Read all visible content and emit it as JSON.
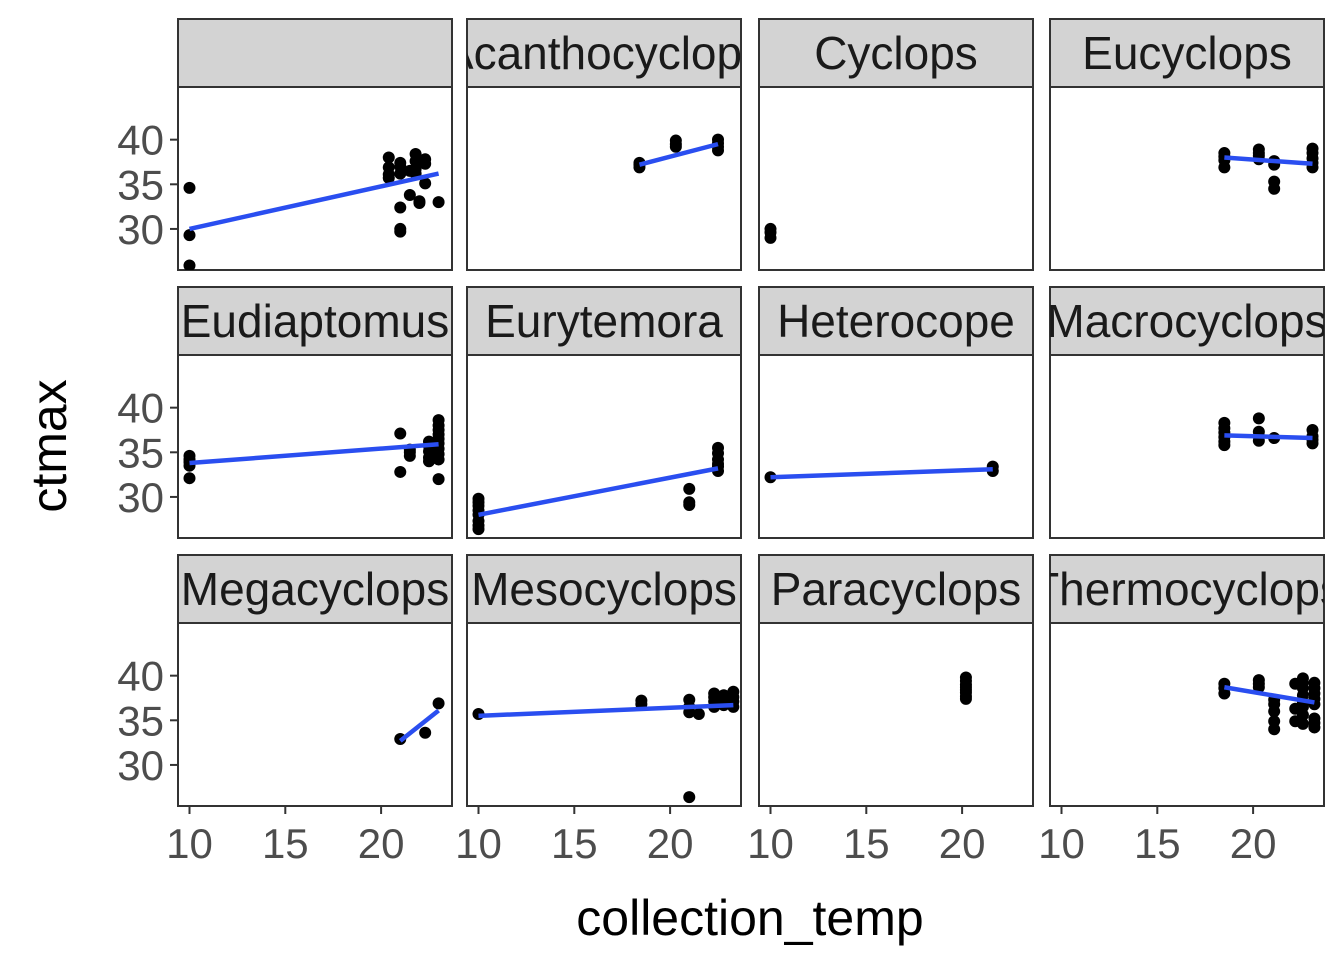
{
  "chart_data": {
    "type": "scatter",
    "layout": "facet grid 3 rows x 4 columns, shared axes",
    "xlabel": "collection_temp",
    "ylabel": "ctmax",
    "x_ticks": [
      10,
      15,
      20
    ],
    "y_ticks": [
      30,
      35,
      40
    ],
    "xlim": [
      9.4,
      23.7
    ],
    "ylim": [
      25.4,
      45.9
    ],
    "trend_line": "linear fit",
    "colors": {
      "point": "#000000",
      "line": "#2a4ef0",
      "strip_fill": "#d3d3d3",
      "panel_border": "#333333"
    },
    "panels": [
      {
        "label": "",
        "points": [
          [
            10,
            34.6
          ],
          [
            10,
            29.3
          ],
          [
            10,
            25.9
          ],
          [
            20.4,
            38.0
          ],
          [
            20.4,
            36.9
          ],
          [
            20.4,
            36.1
          ],
          [
            20.4,
            35.7
          ],
          [
            21,
            37.4
          ],
          [
            21,
            37.0
          ],
          [
            21,
            36.2
          ],
          [
            21,
            32.4
          ],
          [
            21,
            30.0
          ],
          [
            21,
            29.7
          ],
          [
            21.5,
            36.5
          ],
          [
            21.5,
            33.8
          ],
          [
            21.8,
            38.4
          ],
          [
            21.8,
            37.6
          ],
          [
            21.8,
            36.7
          ],
          [
            21.8,
            36.2
          ],
          [
            22,
            33.1
          ],
          [
            22,
            32.9
          ],
          [
            22.3,
            37.8
          ],
          [
            22.3,
            37.3
          ],
          [
            22.3,
            35.1
          ],
          [
            23,
            33.0
          ]
        ],
        "fit": [
          [
            10,
            30.0
          ],
          [
            23,
            36.2
          ]
        ]
      },
      {
        "label": "Acanthocyclops",
        "points": [
          [
            18.4,
            37.4
          ],
          [
            18.4,
            37.2
          ],
          [
            18.4,
            36.9
          ],
          [
            20.3,
            39.9
          ],
          [
            20.3,
            39.5
          ],
          [
            20.3,
            39.2
          ],
          [
            22.5,
            40.0
          ],
          [
            22.5,
            39.6
          ],
          [
            22.5,
            39.2
          ],
          [
            22.5,
            38.8
          ]
        ],
        "fit": [
          [
            18.4,
            37.2
          ],
          [
            22.5,
            39.5
          ]
        ]
      },
      {
        "label": "Cyclops",
        "points": [
          [
            10,
            30.0
          ],
          [
            10,
            29.6
          ],
          [
            10,
            29.0
          ]
        ],
        "fit": []
      },
      {
        "label": "Eucyclops",
        "points": [
          [
            18.5,
            38.5
          ],
          [
            18.5,
            38.1
          ],
          [
            18.5,
            37.7
          ],
          [
            18.5,
            36.9
          ],
          [
            20.3,
            38.9
          ],
          [
            20.3,
            38.5
          ],
          [
            20.3,
            38.2
          ],
          [
            20.3,
            37.8
          ],
          [
            21.1,
            37.6
          ],
          [
            21.1,
            37.2
          ],
          [
            21.1,
            35.3
          ],
          [
            21.1,
            34.5
          ],
          [
            23.1,
            39.0
          ],
          [
            23.1,
            38.5
          ],
          [
            23.1,
            37.9
          ],
          [
            23.1,
            37.4
          ],
          [
            23.1,
            36.9
          ]
        ],
        "fit": [
          [
            18.5,
            38.0
          ],
          [
            23.1,
            37.3
          ]
        ]
      },
      {
        "label": "Eudiaptomus",
        "points": [
          [
            10,
            34.6
          ],
          [
            10,
            34.2
          ],
          [
            10,
            33.9
          ],
          [
            10,
            33.5
          ],
          [
            10,
            32.1
          ],
          [
            21,
            37.1
          ],
          [
            21,
            32.8
          ],
          [
            21.5,
            35.3
          ],
          [
            21.5,
            35.0
          ],
          [
            21.5,
            34.6
          ],
          [
            22.5,
            36.2
          ],
          [
            22.5,
            35.7
          ],
          [
            22.5,
            35.1
          ],
          [
            22.5,
            34.4
          ],
          [
            22.5,
            34.0
          ],
          [
            23,
            38.6
          ],
          [
            23,
            38.0
          ],
          [
            23,
            37.5
          ],
          [
            23,
            37.0
          ],
          [
            23,
            36.5
          ],
          [
            23,
            36.0
          ],
          [
            23,
            35.4
          ],
          [
            23,
            34.8
          ],
          [
            23,
            34.2
          ],
          [
            23,
            32.0
          ]
        ],
        "fit": [
          [
            10,
            33.8
          ],
          [
            23,
            35.9
          ]
        ]
      },
      {
        "label": "Eurytemora",
        "points": [
          [
            10,
            29.8
          ],
          [
            10,
            29.4
          ],
          [
            10,
            29.0
          ],
          [
            10,
            28.5
          ],
          [
            10,
            28.0
          ],
          [
            10,
            27.3
          ],
          [
            10,
            26.8
          ],
          [
            10,
            26.4
          ],
          [
            21,
            30.9
          ],
          [
            21,
            29.4
          ],
          [
            21,
            29.1
          ],
          [
            22.5,
            35.5
          ],
          [
            22.5,
            34.9
          ],
          [
            22.5,
            34.2
          ],
          [
            22.5,
            33.7
          ],
          [
            22.5,
            33.4
          ],
          [
            22.5,
            32.9
          ]
        ],
        "fit": [
          [
            10,
            28.0
          ],
          [
            22.5,
            33.2
          ]
        ]
      },
      {
        "label": "Heterocope",
        "points": [
          [
            10,
            32.2
          ],
          [
            21.6,
            33.4
          ],
          [
            21.6,
            32.9
          ]
        ],
        "fit": [
          [
            10,
            32.2
          ],
          [
            21.6,
            33.1
          ]
        ]
      },
      {
        "label": "Macrocyclops",
        "points": [
          [
            18.5,
            38.3
          ],
          [
            18.5,
            37.7
          ],
          [
            18.5,
            37.2
          ],
          [
            18.5,
            36.7
          ],
          [
            18.5,
            36.2
          ],
          [
            18.5,
            35.8
          ],
          [
            20.3,
            38.8
          ],
          [
            20.3,
            37.3
          ],
          [
            20.3,
            36.8
          ],
          [
            20.3,
            36.3
          ],
          [
            21.1,
            36.6
          ],
          [
            23.1,
            37.5
          ],
          [
            23.1,
            36.8
          ],
          [
            23.1,
            36.4
          ],
          [
            23.1,
            36.0
          ]
        ],
        "fit": [
          [
            18.5,
            36.9
          ],
          [
            23.1,
            36.6
          ]
        ]
      },
      {
        "label": "Megacyclops",
        "points": [
          [
            21,
            32.9
          ],
          [
            22.3,
            33.6
          ],
          [
            23,
            36.9
          ]
        ],
        "fit": [
          [
            21,
            32.7
          ],
          [
            23,
            36.1
          ]
        ]
      },
      {
        "label": "Mesocyclops",
        "points": [
          [
            10,
            35.7
          ],
          [
            18.5,
            37.2
          ],
          [
            18.5,
            36.8
          ],
          [
            21,
            37.3
          ],
          [
            21,
            36.5
          ],
          [
            21,
            35.9
          ],
          [
            21,
            26.4
          ],
          [
            21.5,
            35.7
          ],
          [
            22.3,
            38.0
          ],
          [
            22.3,
            37.6
          ],
          [
            22.3,
            37.1
          ],
          [
            22.3,
            36.5
          ],
          [
            22.8,
            37.8
          ],
          [
            22.8,
            37.2
          ],
          [
            22.8,
            36.7
          ],
          [
            23.3,
            38.2
          ],
          [
            23.3,
            37.6
          ],
          [
            23.3,
            37.1
          ],
          [
            23.3,
            36.5
          ]
        ],
        "fit": [
          [
            10,
            35.5
          ],
          [
            23.3,
            36.7
          ]
        ]
      },
      {
        "label": "Paracyclops",
        "points": [
          [
            20.2,
            39.8
          ],
          [
            20.2,
            39.4
          ],
          [
            20.2,
            39.0
          ],
          [
            20.2,
            38.7
          ],
          [
            20.2,
            38.4
          ],
          [
            20.2,
            38.1
          ],
          [
            20.2,
            37.7
          ],
          [
            20.2,
            37.4
          ]
        ],
        "fit": []
      },
      {
        "label": "Thermocyclops",
        "points": [
          [
            18.5,
            39.1
          ],
          [
            18.5,
            38.6
          ],
          [
            18.5,
            38.0
          ],
          [
            20.3,
            39.5
          ],
          [
            20.3,
            39.1
          ],
          [
            20.3,
            38.7
          ],
          [
            21.1,
            37.3
          ],
          [
            21.1,
            36.8
          ],
          [
            21.1,
            36.0
          ],
          [
            21.1,
            34.9
          ],
          [
            21.1,
            34.0
          ],
          [
            22.2,
            39.1
          ],
          [
            22.2,
            36.3
          ],
          [
            22.2,
            34.9
          ],
          [
            22.6,
            39.7
          ],
          [
            22.6,
            39.2
          ],
          [
            22.6,
            38.6
          ],
          [
            22.6,
            37.8
          ],
          [
            22.6,
            37.0
          ],
          [
            22.6,
            36.5
          ],
          [
            22.6,
            35.6
          ],
          [
            22.6,
            34.6
          ],
          [
            23.2,
            39.2
          ],
          [
            23.2,
            38.6
          ],
          [
            23.2,
            38.0
          ],
          [
            23.2,
            37.4
          ],
          [
            23.2,
            36.8
          ],
          [
            23.2,
            35.2
          ],
          [
            23.2,
            34.7
          ],
          [
            23.2,
            34.2
          ]
        ],
        "fit": [
          [
            18.5,
            38.7
          ],
          [
            23.2,
            37.0
          ]
        ]
      }
    ]
  }
}
